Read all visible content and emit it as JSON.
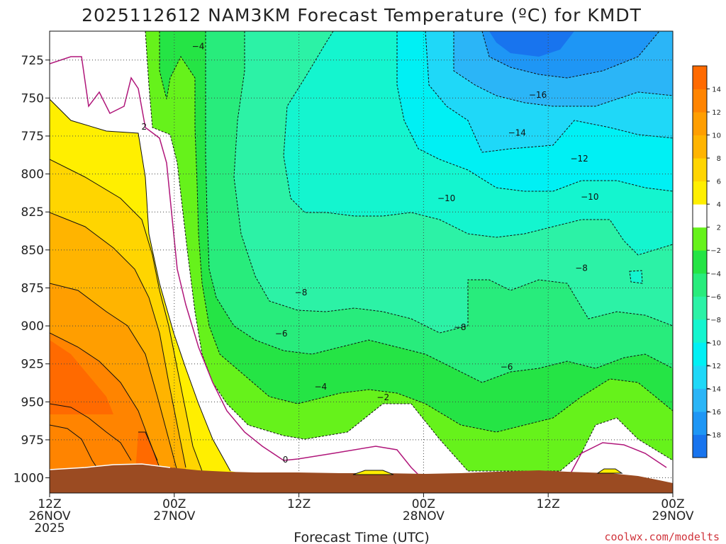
{
  "chart_data": {
    "type": "heatmap",
    "title": "2025112612 NAM3KM Forecast Temperature (ºC) for KMDT",
    "xlabel": "Forecast Time (UTC)",
    "ylabel": "",
    "x_ticks": [
      {
        "hour": 0,
        "l1": "12Z",
        "l2": "26NOV",
        "l3": "2025"
      },
      {
        "hour": 12,
        "l1": "00Z",
        "l2": "27NOV",
        "l3": ""
      },
      {
        "hour": 24,
        "l1": "12Z",
        "l2": "",
        "l3": ""
      },
      {
        "hour": 36,
        "l1": "00Z",
        "l2": "28NOV",
        "l3": ""
      },
      {
        "hour": 48,
        "l1": "12Z",
        "l2": "",
        "l3": ""
      },
      {
        "hour": 60,
        "l1": "00Z",
        "l2": "29NOV",
        "l3": ""
      }
    ],
    "xlim": [
      0,
      60
    ],
    "ylim": [
      1010,
      706
    ],
    "y_ticks": [
      725,
      750,
      775,
      800,
      825,
      850,
      875,
      900,
      925,
      950,
      975,
      1000
    ],
    "colorbar": {
      "levels": [
        -20,
        -18,
        -16,
        -14,
        -12,
        -10,
        -8,
        -6,
        -4,
        -2,
        2,
        4,
        6,
        8,
        10,
        12,
        14,
        16
      ],
      "colors": [
        "#1874ee",
        "#1e96f5",
        "#2bb5f7",
        "#1fd8f8",
        "#00f0f4",
        "#14f5cf",
        "#2cf2a6",
        "#28ec7c",
        "#25e445",
        "#66f21b",
        "#ffffff",
        "#ffef00",
        "#ffd500",
        "#ffb400",
        "#ff9e00",
        "#ff8400",
        "#ff6a00"
      ],
      "labels": [
        "-18",
        "-16",
        "-14",
        "-12",
        "-10",
        "-8",
        "-6",
        "-4",
        "-2",
        "2",
        "4",
        "6",
        "8",
        "10",
        "12",
        "14"
      ]
    },
    "contour_labels": [
      {
        "text": "-4",
        "hour": 14.3,
        "p": 716
      },
      {
        "text": "2",
        "hour": 9.1,
        "p": 769
      },
      {
        "text": "-16",
        "hour": 47.0,
        "p": 748
      },
      {
        "text": "-14",
        "hour": 45.0,
        "p": 773
      },
      {
        "text": "-12",
        "hour": 51.0,
        "p": 790
      },
      {
        "text": "-10",
        "hour": 38.2,
        "p": 816
      },
      {
        "text": "-10",
        "hour": 52.0,
        "p": 815
      },
      {
        "text": "-8",
        "hour": 51.2,
        "p": 862
      },
      {
        "text": "-8",
        "hour": 24.2,
        "p": 878
      },
      {
        "text": "-8",
        "hour": 39.5,
        "p": 901
      },
      {
        "text": "-6",
        "hour": 22.3,
        "p": 905
      },
      {
        "text": "-6",
        "hour": 44.0,
        "p": 927
      },
      {
        "text": "-4",
        "hour": 26.1,
        "p": 940
      },
      {
        "text": "-2",
        "hour": 32.1,
        "p": 947
      },
      {
        "text": "0",
        "hour": 22.7,
        "p": 988
      }
    ]
  },
  "credit": "coolwx.com/modelts"
}
